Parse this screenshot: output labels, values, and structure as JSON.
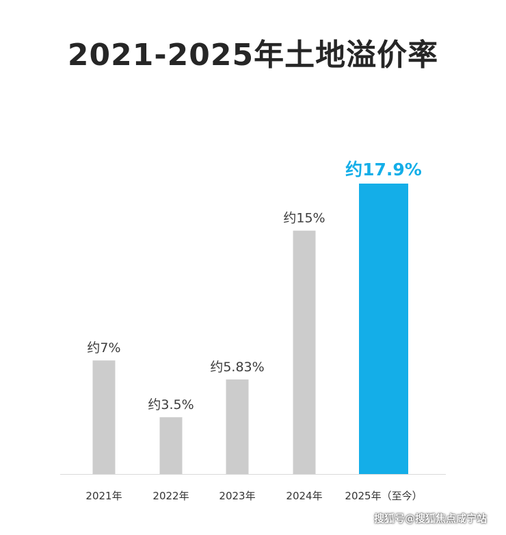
{
  "chart_data": {
    "type": "bar",
    "title": "2021-2025年土地溢价率",
    "categories": [
      "2021年",
      "2022年",
      "2023年",
      "2024年",
      "2025年（至今）"
    ],
    "values": [
      7,
      3.5,
      5.83,
      15,
      17.9
    ],
    "data_labels": [
      "约7%",
      "约3.5%",
      "约5.83%",
      "约15%",
      "约17.9%"
    ],
    "colors": {
      "default_bar": "#cccccc",
      "highlight_bar": "#14aee8",
      "label_text": "#3c3c3c",
      "highlight_label_text": "#14aee8",
      "axis": "#d9d9d9"
    },
    "highlight_index": 4,
    "xlabel": "",
    "ylabel": "",
    "ylim": [
      0,
      17.9
    ],
    "grid": false,
    "legend": "none"
  },
  "watermark": "搜狐号@搜狐焦点咸宁站"
}
